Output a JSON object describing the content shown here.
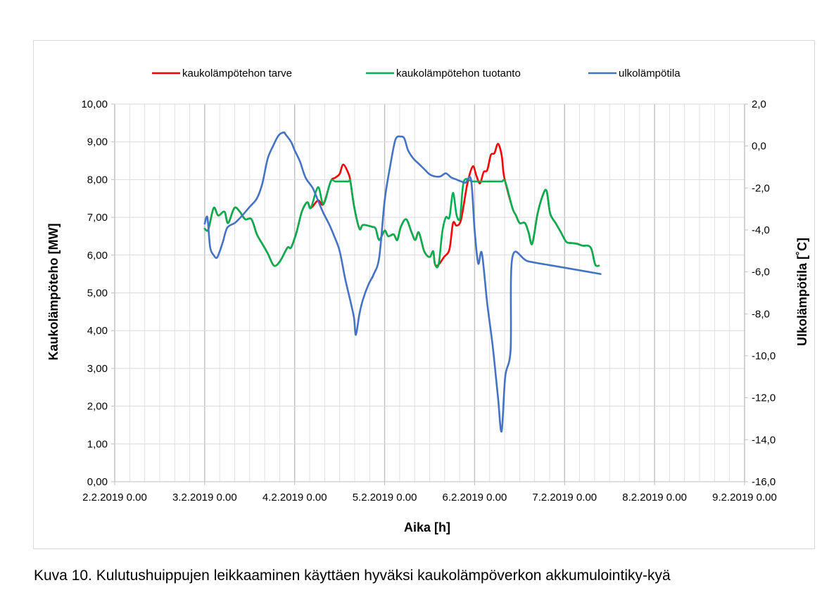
{
  "caption": "Kuva 10. Kulutushuippujen leikkaaminen käyttäen hyväksi kaukolämpöverkon akkumulointiky-kyä",
  "colors": {
    "tarve": "#ff0000",
    "tuotanto": "#00b050",
    "ulko": "#4472c4",
    "grid": "#d9d9d9",
    "frame": "#d9d9d9"
  },
  "chart_data": {
    "type": "line",
    "title": "",
    "xlabel": "Aika [h]",
    "ylabel": "Kaukolämpöteho [MW]",
    "ylabel_right": "Ulkolämpötila [˚C]",
    "xlim": [
      0,
      7
    ],
    "x_unit": "days since 2.2.2019 0.00",
    "x_tick_labels": [
      "2.2.2019 0.00",
      "3.2.2019 0.00",
      "4.2.2019 0.00",
      "5.2.2019 0.00",
      "6.2.2019 0.00",
      "7.2.2019 0.00",
      "8.2.2019 0.00",
      "9.2.2019 0.00"
    ],
    "ylim": [
      0,
      10
    ],
    "y_tick_labels": [
      "0,00",
      "1,00",
      "2,00",
      "3,00",
      "4,00",
      "5,00",
      "6,00",
      "7,00",
      "8,00",
      "9,00",
      "10,00"
    ],
    "y2lim": [
      -16,
      2
    ],
    "y2_tick_labels": [
      "-16,0",
      "-14,0",
      "-12,0",
      "-10,0",
      "-8,0",
      "-6,0",
      "-4,0",
      "-2,0",
      "0,0",
      "2,0"
    ],
    "grid": true,
    "legend_position": "top",
    "series": [
      {
        "name": "kaukolämpötehon tarve",
        "axis": "left",
        "color_key": "tarve",
        "points": [
          [
            1.0,
            6.7
          ],
          [
            1.04,
            6.68
          ],
          [
            1.1,
            7.25
          ],
          [
            1.15,
            7.05
          ],
          [
            1.22,
            7.15
          ],
          [
            1.26,
            6.85
          ],
          [
            1.33,
            7.25
          ],
          [
            1.39,
            7.15
          ],
          [
            1.45,
            6.95
          ],
          [
            1.52,
            6.95
          ],
          [
            1.58,
            6.55
          ],
          [
            1.64,
            6.3
          ],
          [
            1.7,
            6.05
          ],
          [
            1.77,
            5.72
          ],
          [
            1.84,
            5.85
          ],
          [
            1.92,
            6.2
          ],
          [
            1.96,
            6.2
          ],
          [
            2.02,
            6.6
          ],
          [
            2.08,
            7.15
          ],
          [
            2.14,
            7.4
          ],
          [
            2.18,
            7.25
          ],
          [
            2.26,
            7.45
          ],
          [
            2.32,
            7.35
          ],
          [
            2.4,
            7.95
          ],
          [
            2.45,
            8.05
          ],
          [
            2.5,
            8.15
          ],
          [
            2.54,
            8.4
          ],
          [
            2.6,
            8.15
          ],
          [
            2.62,
            7.95
          ],
          [
            2.66,
            7.3
          ],
          [
            2.72,
            6.7
          ],
          [
            2.76,
            6.8
          ],
          [
            2.86,
            6.75
          ],
          [
            2.9,
            6.7
          ],
          [
            2.94,
            6.4
          ],
          [
            3.0,
            6.65
          ],
          [
            3.04,
            6.5
          ],
          [
            3.1,
            6.55
          ],
          [
            3.14,
            6.4
          ],
          [
            3.18,
            6.75
          ],
          [
            3.24,
            6.95
          ],
          [
            3.3,
            6.6
          ],
          [
            3.34,
            6.4
          ],
          [
            3.38,
            6.6
          ],
          [
            3.44,
            6.1
          ],
          [
            3.5,
            5.95
          ],
          [
            3.54,
            6.1
          ],
          [
            3.56,
            5.75
          ],
          [
            3.6,
            5.75
          ],
          [
            3.66,
            5.95
          ],
          [
            3.72,
            6.15
          ],
          [
            3.76,
            6.85
          ],
          [
            3.8,
            6.78
          ],
          [
            3.85,
            6.95
          ],
          [
            3.92,
            7.9
          ],
          [
            3.98,
            8.35
          ],
          [
            4.02,
            8.1
          ],
          [
            4.06,
            7.9
          ],
          [
            4.1,
            8.2
          ],
          [
            4.14,
            8.25
          ],
          [
            4.18,
            8.65
          ],
          [
            4.22,
            8.7
          ],
          [
            4.26,
            8.95
          ],
          [
            4.3,
            8.65
          ],
          [
            4.32,
            8.2
          ],
          [
            4.34,
            7.95
          ],
          [
            4.42,
            7.25
          ],
          [
            4.46,
            7.05
          ],
          [
            4.5,
            6.85
          ],
          [
            4.56,
            6.85
          ],
          [
            4.6,
            6.6
          ],
          [
            4.64,
            6.3
          ],
          [
            4.7,
            7.1
          ],
          [
            4.76,
            7.6
          ],
          [
            4.8,
            7.7
          ],
          [
            4.84,
            7.1
          ],
          [
            4.9,
            6.85
          ],
          [
            4.96,
            6.6
          ],
          [
            5.02,
            6.35
          ],
          [
            5.08,
            6.32
          ],
          [
            5.14,
            6.3
          ],
          [
            5.2,
            6.25
          ],
          [
            5.26,
            6.25
          ],
          [
            5.3,
            6.15
          ],
          [
            5.34,
            5.75
          ],
          [
            5.38,
            5.72
          ]
        ]
      },
      {
        "name": "kaukolämpötehon tuotanto",
        "axis": "left",
        "color_key": "tuotanto",
        "points": [
          [
            1.0,
            6.7
          ],
          [
            1.04,
            6.68
          ],
          [
            1.1,
            7.25
          ],
          [
            1.15,
            7.05
          ],
          [
            1.22,
            7.15
          ],
          [
            1.26,
            6.85
          ],
          [
            1.33,
            7.25
          ],
          [
            1.39,
            7.15
          ],
          [
            1.45,
            6.95
          ],
          [
            1.52,
            6.95
          ],
          [
            1.58,
            6.55
          ],
          [
            1.64,
            6.3
          ],
          [
            1.7,
            6.05
          ],
          [
            1.77,
            5.72
          ],
          [
            1.84,
            5.85
          ],
          [
            1.92,
            6.2
          ],
          [
            1.96,
            6.2
          ],
          [
            2.02,
            6.6
          ],
          [
            2.08,
            7.15
          ],
          [
            2.14,
            7.4
          ],
          [
            2.18,
            7.25
          ],
          [
            2.26,
            7.8
          ],
          [
            2.32,
            7.35
          ],
          [
            2.4,
            7.95
          ],
          [
            2.45,
            7.95
          ],
          [
            2.5,
            7.95
          ],
          [
            2.54,
            7.95
          ],
          [
            2.6,
            7.95
          ],
          [
            2.62,
            7.95
          ],
          [
            2.66,
            7.3
          ],
          [
            2.72,
            6.7
          ],
          [
            2.76,
            6.8
          ],
          [
            2.86,
            6.75
          ],
          [
            2.9,
            6.7
          ],
          [
            2.94,
            6.4
          ],
          [
            3.0,
            6.65
          ],
          [
            3.04,
            6.5
          ],
          [
            3.1,
            6.55
          ],
          [
            3.14,
            6.4
          ],
          [
            3.18,
            6.75
          ],
          [
            3.24,
            6.95
          ],
          [
            3.3,
            6.6
          ],
          [
            3.34,
            6.4
          ],
          [
            3.38,
            6.6
          ],
          [
            3.44,
            6.1
          ],
          [
            3.5,
            5.95
          ],
          [
            3.54,
            6.1
          ],
          [
            3.56,
            5.75
          ],
          [
            3.6,
            5.75
          ],
          [
            3.64,
            6.6
          ],
          [
            3.68,
            7.0
          ],
          [
            3.72,
            7.0
          ],
          [
            3.76,
            7.65
          ],
          [
            3.8,
            7.05
          ],
          [
            3.84,
            7.0
          ],
          [
            3.88,
            7.95
          ],
          [
            3.98,
            7.95
          ],
          [
            4.1,
            7.95
          ],
          [
            4.2,
            7.95
          ],
          [
            4.3,
            7.95
          ],
          [
            4.34,
            7.95
          ],
          [
            4.42,
            7.25
          ],
          [
            4.46,
            7.05
          ],
          [
            4.5,
            6.85
          ],
          [
            4.56,
            6.85
          ],
          [
            4.6,
            6.6
          ],
          [
            4.64,
            6.3
          ],
          [
            4.7,
            7.1
          ],
          [
            4.76,
            7.6
          ],
          [
            4.8,
            7.7
          ],
          [
            4.84,
            7.1
          ],
          [
            4.9,
            6.85
          ],
          [
            4.96,
            6.6
          ],
          [
            5.02,
            6.35
          ],
          [
            5.08,
            6.32
          ],
          [
            5.14,
            6.3
          ],
          [
            5.2,
            6.25
          ],
          [
            5.26,
            6.25
          ],
          [
            5.3,
            6.15
          ],
          [
            5.34,
            5.75
          ],
          [
            5.38,
            5.72
          ]
        ]
      },
      {
        "name": "ulkolämpötila",
        "axis": "right",
        "color_key": "ulko",
        "points": [
          [
            1.0,
            -3.7
          ],
          [
            1.03,
            -3.4
          ],
          [
            1.06,
            -4.8
          ],
          [
            1.1,
            -5.2
          ],
          [
            1.14,
            -5.3
          ],
          [
            1.2,
            -4.6
          ],
          [
            1.25,
            -3.9
          ],
          [
            1.34,
            -3.65
          ],
          [
            1.42,
            -3.3
          ],
          [
            1.5,
            -2.9
          ],
          [
            1.58,
            -2.5
          ],
          [
            1.64,
            -1.8
          ],
          [
            1.7,
            -0.6
          ],
          [
            1.76,
            0.0
          ],
          [
            1.82,
            0.5
          ],
          [
            1.88,
            0.65
          ],
          [
            1.9,
            0.55
          ],
          [
            1.96,
            0.2
          ],
          [
            2.0,
            -0.2
          ],
          [
            2.06,
            -0.75
          ],
          [
            2.12,
            -1.5
          ],
          [
            2.2,
            -2.0
          ],
          [
            2.26,
            -2.6
          ],
          [
            2.32,
            -3.2
          ],
          [
            2.38,
            -3.7
          ],
          [
            2.44,
            -4.3
          ],
          [
            2.5,
            -5.0
          ],
          [
            2.56,
            -6.3
          ],
          [
            2.62,
            -7.4
          ],
          [
            2.66,
            -8.2
          ],
          [
            2.68,
            -9.0
          ],
          [
            2.72,
            -8.0
          ],
          [
            2.76,
            -7.3
          ],
          [
            2.82,
            -6.6
          ],
          [
            2.88,
            -6.1
          ],
          [
            2.94,
            -5.3
          ],
          [
            3.0,
            -2.6
          ],
          [
            3.06,
            -1.0
          ],
          [
            3.12,
            0.3
          ],
          [
            3.18,
            0.45
          ],
          [
            3.22,
            0.35
          ],
          [
            3.26,
            -0.2
          ],
          [
            3.32,
            -0.6
          ],
          [
            3.38,
            -0.85
          ],
          [
            3.44,
            -1.1
          ],
          [
            3.5,
            -1.35
          ],
          [
            3.56,
            -1.45
          ],
          [
            3.62,
            -1.45
          ],
          [
            3.68,
            -1.3
          ],
          [
            3.74,
            -1.5
          ],
          [
            3.8,
            -1.6
          ],
          [
            3.86,
            -1.7
          ],
          [
            3.9,
            -1.75
          ],
          [
            3.96,
            -1.6
          ],
          [
            4.0,
            -4.0
          ],
          [
            4.04,
            -5.6
          ],
          [
            4.08,
            -5.1
          ],
          [
            4.14,
            -7.5
          ],
          [
            4.2,
            -9.5
          ],
          [
            4.26,
            -12.0
          ],
          [
            4.3,
            -13.6
          ],
          [
            4.34,
            -11.0
          ],
          [
            4.4,
            -9.7
          ],
          [
            4.42,
            -5.3
          ],
          [
            4.6,
            -5.5
          ],
          [
            5.0,
            -5.8
          ],
          [
            5.4,
            -6.1
          ]
        ]
      }
    ]
  }
}
